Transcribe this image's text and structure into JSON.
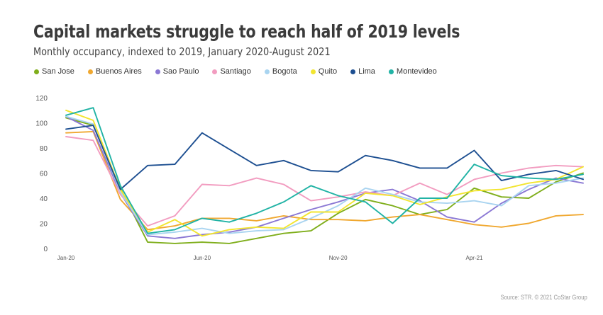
{
  "title": "Capital markets struggle to reach half of 2019 levels",
  "subtitle": "Monthly occupancy, indexed to 2019, January 2020-August 2021",
  "source": "Source: STR. © 2021 CoStar Group",
  "chart_data": {
    "type": "line",
    "x": [
      "Jan-20",
      "Feb-20",
      "Mar-20",
      "Apr-20",
      "May-20",
      "Jun-20",
      "Jul-20",
      "Aug-20",
      "Sep-20",
      "Oct-20",
      "Nov-20",
      "Dec-20",
      "Jan-21",
      "Feb-21",
      "Mar-21",
      "Apr-21",
      "May-21",
      "Jun-21",
      "Jul-21",
      "Aug-21"
    ],
    "xticks": [
      "Jan-20",
      "Jun-20",
      "Nov-20",
      "Apr-21"
    ],
    "ylim": [
      0,
      120
    ],
    "yticks": [
      0,
      20,
      40,
      60,
      80,
      100,
      120
    ],
    "grid": false,
    "legend": "top",
    "series": [
      {
        "name": "San Jose",
        "color": "#7fae1b",
        "values": [
          104,
          98,
          48,
          5,
          4,
          5,
          4,
          8,
          12,
          14,
          28,
          39,
          34,
          27,
          31,
          48,
          41,
          40,
          53,
          60
        ]
      },
      {
        "name": "Buenos Aires",
        "color": "#f0a830",
        "values": [
          92,
          93,
          39,
          15,
          18,
          24,
          24,
          22,
          26,
          23,
          23,
          22,
          25,
          27,
          23,
          19,
          17,
          20,
          26,
          27
        ]
      },
      {
        "name": "Sao Paulo",
        "color": "#8b78d4",
        "values": [
          105,
          94,
          44,
          10,
          8,
          11,
          13,
          17,
          24,
          31,
          37,
          44,
          47,
          38,
          25,
          21,
          36,
          47,
          56,
          52
        ]
      },
      {
        "name": "Santiago",
        "color": "#f29cc0",
        "values": [
          89,
          86,
          43,
          18,
          26,
          51,
          50,
          56,
          51,
          38,
          41,
          45,
          42,
          52,
          43,
          55,
          60,
          64,
          66,
          65
        ]
      },
      {
        "name": "Bogota",
        "color": "#a9d4f0",
        "values": [
          105,
          99,
          45,
          11,
          13,
          16,
          12,
          14,
          15,
          24,
          34,
          48,
          43,
          37,
          36,
          38,
          34,
          50,
          52,
          56
        ]
      },
      {
        "name": "Quito",
        "color": "#f2e530",
        "values": [
          110,
          102,
          47,
          13,
          23,
          10,
          15,
          17,
          16,
          29,
          29,
          44,
          42,
          35,
          41,
          46,
          47,
          52,
          55,
          65
        ]
      },
      {
        "name": "Lima",
        "color": "#1d4f91",
        "values": [
          95,
          98,
          47,
          66,
          67,
          92,
          79,
          66,
          70,
          62,
          61,
          74,
          70,
          64,
          64,
          78,
          54,
          59,
          62,
          55
        ]
      },
      {
        "name": "Montevideo",
        "color": "#21b3a5",
        "values": [
          106,
          112,
          50,
          12,
          15,
          24,
          21,
          28,
          37,
          50,
          42,
          37,
          20,
          40,
          40,
          67,
          58,
          56,
          55,
          59
        ]
      }
    ]
  }
}
